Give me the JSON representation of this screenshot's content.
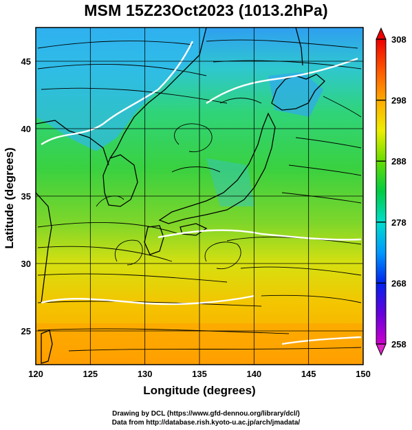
{
  "title": "MSM 15Z23Oct2023 (1013.2hPa)",
  "axes": {
    "xlabel": "Longitude (degrees)",
    "ylabel": "Latitude (degrees)",
    "xlim": [
      120,
      150
    ],
    "ylim": [
      22.5,
      47.5
    ],
    "xticks": [
      120,
      125,
      130,
      135,
      140,
      145,
      150
    ],
    "yticks": [
      25,
      30,
      35,
      40,
      45
    ],
    "grid": true
  },
  "colorbar": {
    "range": [
      258,
      308
    ],
    "ticks": [
      258,
      268,
      278,
      288,
      298,
      308
    ],
    "colors": [
      "#cc00cc",
      "#2200ee",
      "#0099ff",
      "#00ddcc",
      "#00cc44",
      "#66dd00",
      "#eeee00",
      "#ffaa00",
      "#ff5500",
      "#ee0000"
    ]
  },
  "colors": {
    "land_cool": "#33c0ff",
    "land_mid": "#1ecf50",
    "sea_warm": "#ffb000",
    "coast": "#000000",
    "contour": "#ffffff"
  },
  "credits": [
    "Drawing by DCL (https://www.gfd-dennou.org/library/dcl/)",
    "Data from http://database.rish.kyoto-u.ac.jp/arch/jmadata/"
  ]
}
